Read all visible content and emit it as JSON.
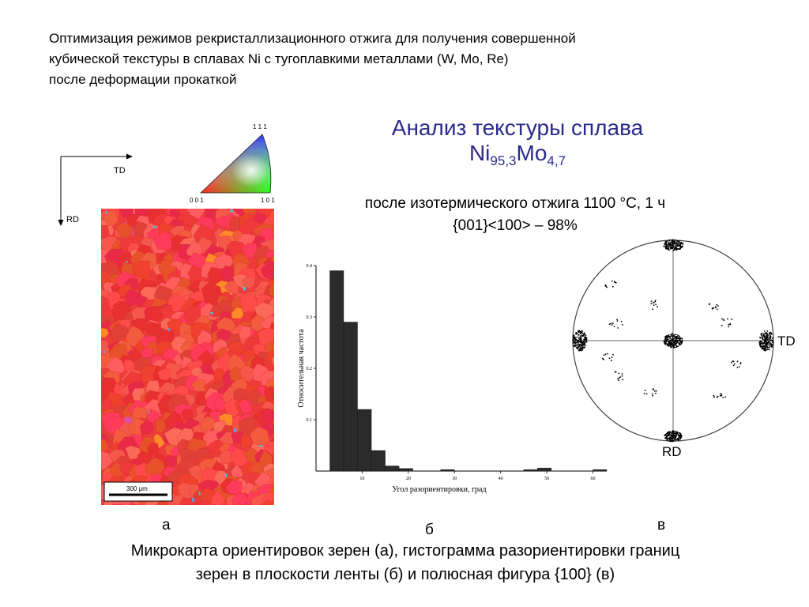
{
  "header": {
    "lines": [
      "Оптимизация режимов рекристаллизационного отжига для получения совершенной",
      "кубической текстуры  в сплавах Ni с тугоплавкими металлами (W, Mo, Re)",
      "после деформации прокаткой"
    ]
  },
  "title": {
    "line1": "Анализ текстуры сплава",
    "alloy_ni": "Ni",
    "alloy_ni_sub": "95,3",
    "alloy_mo": "Mo",
    "alloy_mo_sub": "4,7",
    "color": "#2a2a8c"
  },
  "subtitle": {
    "line1": "после изотермического отжига 1100 °С, 1 ч",
    "line2": "{001}<100> – 98%"
  },
  "map_panel": {
    "td_label": "TD",
    "rd_label": "RD",
    "triangle_top": "1 1 1",
    "triangle_left": "0 0 1",
    "triangle_right": "1 0 1",
    "scale_bar": "300 μm",
    "letter": "а",
    "dominant_color": "#ee3b3b"
  },
  "chart_data": {
    "type": "bar",
    "ylabel": "Относительная частота",
    "xlabel": "Угол разориентировки, град",
    "x_ticks": [
      10,
      20,
      30,
      40,
      50,
      60
    ],
    "y_ticks": [
      0.1,
      0.2,
      0.3,
      0.4
    ],
    "xlim": [
      0,
      63
    ],
    "ylim": [
      0,
      0.4
    ],
    "bin_width": 3,
    "x": [
      1.5,
      4.5,
      7.5,
      10.5,
      13.5,
      16.5,
      19.5,
      22.5,
      25.5,
      28.5,
      31.5,
      34.5,
      37.5,
      40.5,
      43.5,
      46.5,
      49.5,
      52.5,
      55.5,
      58.5,
      61.5
    ],
    "values": [
      0.0,
      0.39,
      0.29,
      0.12,
      0.04,
      0.01,
      0.005,
      0.0,
      0.0,
      0.003,
      0.0,
      0.0,
      0.0,
      0.0,
      0.0,
      0.003,
      0.006,
      0.0,
      0.0,
      0.0,
      0.003
    ],
    "bar_color": "#2b2b2b",
    "letter": "б"
  },
  "pole_figure": {
    "td_label": "TD",
    "rd_label": "RD",
    "letter": "в"
  },
  "caption": {
    "line1": "Микрокарта ориентировок зерен (а), гистограмма разориентировки границ",
    "line2": "зерен в плоскости ленты (б) и полюсная фигура {100} (в)"
  }
}
